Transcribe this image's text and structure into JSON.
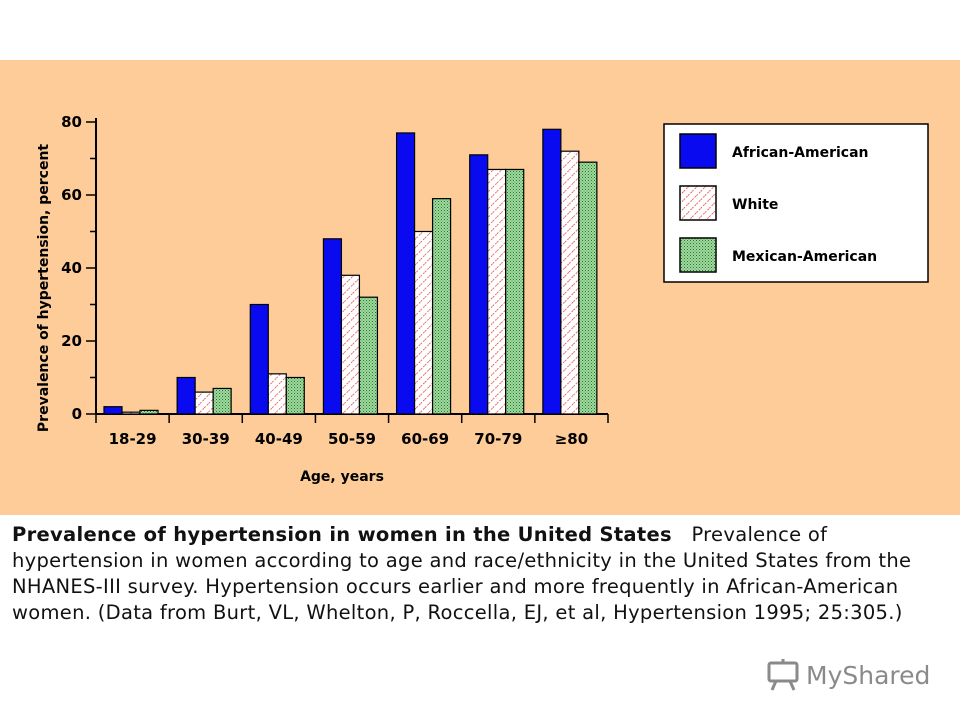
{
  "chart_data": {
    "type": "bar",
    "title": "",
    "xlabel": "Age, years",
    "ylabel": "Prevalence of hypertension, percent",
    "categories": [
      "18-29",
      "30-39",
      "40-49",
      "50-59",
      "60-69",
      "70-79",
      "≥80"
    ],
    "ylim": [
      0,
      80
    ],
    "yticks": [
      "0",
      "20",
      "40",
      "60",
      "80"
    ],
    "series": [
      {
        "name": "African-American",
        "values": [
          2,
          10,
          30,
          48,
          77,
          71,
          78
        ],
        "color": "#0a0af0",
        "pattern": "solid"
      },
      {
        "name": "White",
        "values": [
          0.5,
          6,
          11,
          38,
          50,
          67,
          72
        ],
        "color": "#ffffff",
        "pattern": "red-diagonal-hatch"
      },
      {
        "name": "Mexican-American",
        "values": [
          1,
          7,
          10,
          32,
          59,
          67,
          69
        ],
        "color": "#8ed28e",
        "pattern": "green-dots"
      }
    ],
    "legend_position": "top-right",
    "grid": false
  },
  "caption": {
    "title": "Prevalence of hypertension in women in the United States",
    "body": "Prevalence of hypertension in women according to age and race/ethnicity in the United States from the NHANES-III survey. Hypertension occurs earlier and more frequently in African-American women. (Data from Burt, VL, Whelton, P, Roccella, EJ, et al, Hypertension 1995; 25:305.)"
  },
  "watermark": {
    "text": "MyShared",
    "icon": "projector-screen-icon"
  }
}
